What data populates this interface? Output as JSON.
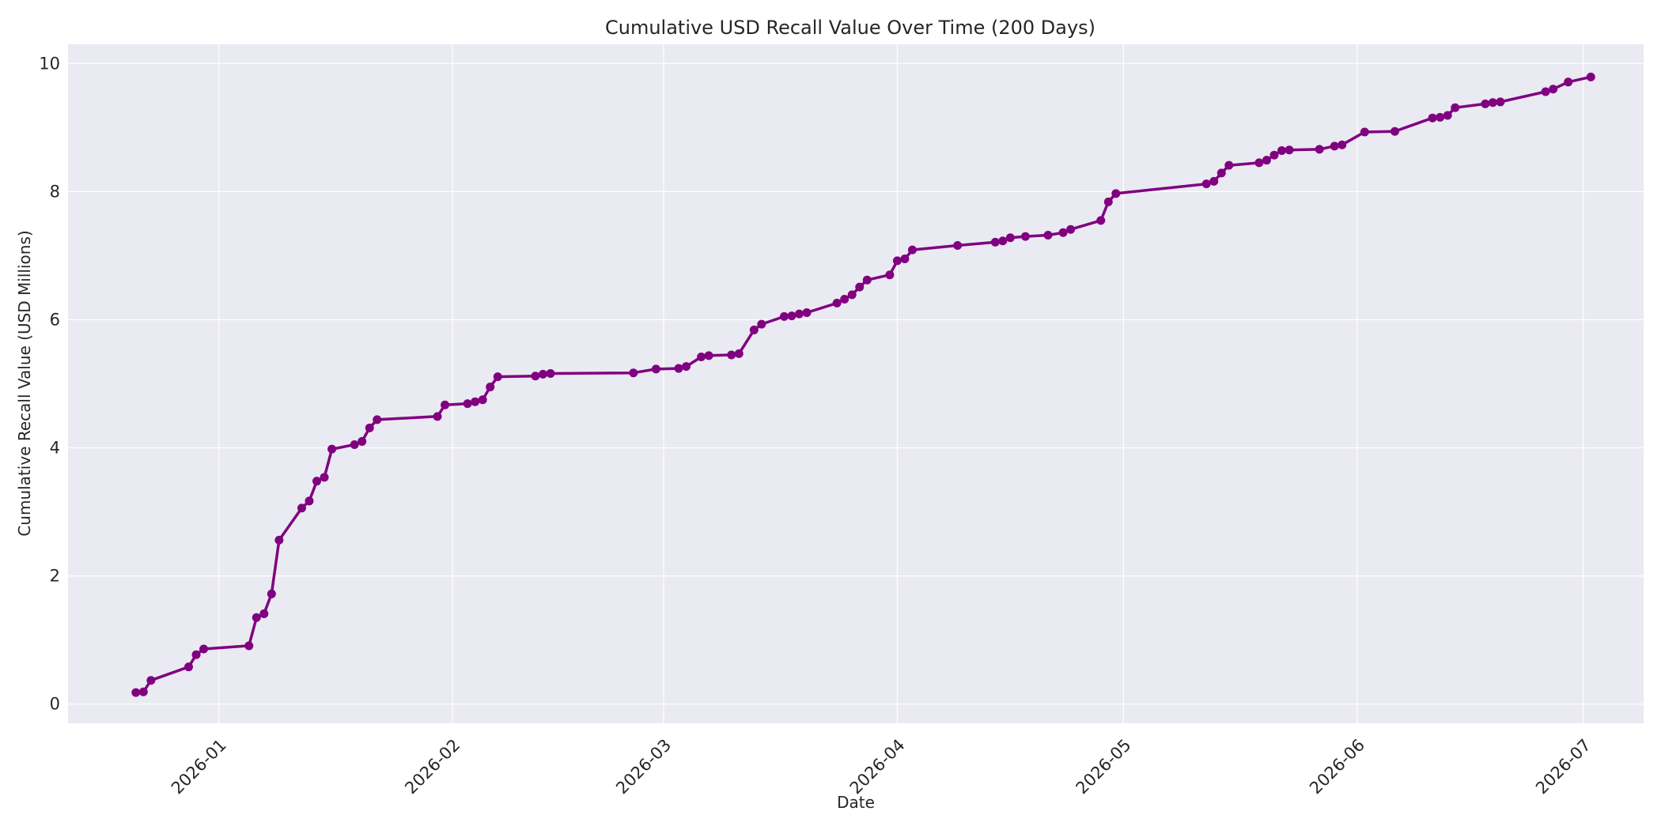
{
  "chart_data": {
    "type": "line",
    "title": "Cumulative USD Recall Value Over Time (200 Days)",
    "xlabel": "Date",
    "ylabel": "Cumulative Recall Value (USD Millions)",
    "x_tick_labels": [
      "2026-01",
      "2026-02",
      "2026-03",
      "2026-04",
      "2026-05",
      "2026-06",
      "2026-07"
    ],
    "x_tick_dates": [
      "2026-01-01",
      "2026-02-01",
      "2026-03-01",
      "2026-04-01",
      "2026-05-01",
      "2026-06-01",
      "2026-07-01"
    ],
    "y_ticks": [
      0,
      2,
      4,
      6,
      8,
      10
    ],
    "xlim": [
      "2025-12-12",
      "2026-07-09"
    ],
    "ylim": [
      -0.3,
      10.3
    ],
    "grid": true,
    "colors": {
      "line": "#800080",
      "plot_background": "#eaeaf2",
      "grid": "#ffffff",
      "page_background": "#ffffff"
    },
    "series": [
      {
        "x": [
          "2025-12-21",
          "2025-12-22",
          "2025-12-23",
          "2025-12-28",
          "2025-12-29",
          "2025-12-30",
          "2026-01-05",
          "2026-01-06",
          "2026-01-07",
          "2026-01-08",
          "2026-01-09",
          "2026-01-12",
          "2026-01-13",
          "2026-01-14",
          "2026-01-15",
          "2026-01-16",
          "2026-01-19",
          "2026-01-20",
          "2026-01-21",
          "2026-01-22",
          "2026-01-30",
          "2026-01-31",
          "2026-02-03",
          "2026-02-04",
          "2026-02-05",
          "2026-02-06",
          "2026-02-07",
          "2026-02-12",
          "2026-02-13",
          "2026-02-14",
          "2026-02-25",
          "2026-02-28",
          "2026-03-03",
          "2026-03-04",
          "2026-03-06",
          "2026-03-07",
          "2026-03-10",
          "2026-03-11",
          "2026-03-13",
          "2026-03-14",
          "2026-03-17",
          "2026-03-18",
          "2026-03-19",
          "2026-03-20",
          "2026-03-24",
          "2026-03-25",
          "2026-03-26",
          "2026-03-27",
          "2026-03-28",
          "2026-03-31",
          "2026-04-01",
          "2026-04-02",
          "2026-04-03",
          "2026-04-09",
          "2026-04-14",
          "2026-04-15",
          "2026-04-16",
          "2026-04-18",
          "2026-04-21",
          "2026-04-23",
          "2026-04-24",
          "2026-04-28",
          "2026-04-29",
          "2026-04-30",
          "2026-05-12",
          "2026-05-13",
          "2026-05-14",
          "2026-05-15",
          "2026-05-19",
          "2026-05-20",
          "2026-05-21",
          "2026-05-22",
          "2026-05-23",
          "2026-05-27",
          "2026-05-29",
          "2026-05-30",
          "2026-06-02",
          "2026-06-06",
          "2026-06-11",
          "2026-06-12",
          "2026-06-13",
          "2026-06-14",
          "2026-06-18",
          "2026-06-19",
          "2026-06-20",
          "2026-06-26",
          "2026-06-27",
          "2026-06-29",
          "2026-07-02"
        ],
        "y": [
          0.18,
          0.19,
          0.37,
          0.58,
          0.77,
          0.86,
          0.91,
          1.35,
          1.41,
          1.72,
          2.56,
          3.06,
          3.17,
          3.48,
          3.54,
          3.98,
          4.05,
          4.1,
          4.31,
          4.44,
          4.49,
          4.67,
          4.69,
          4.72,
          4.75,
          4.95,
          5.11,
          5.12,
          5.15,
          5.16,
          5.17,
          5.23,
          5.24,
          5.27,
          5.42,
          5.44,
          5.45,
          5.47,
          5.84,
          5.93,
          6.05,
          6.06,
          6.09,
          6.11,
          6.26,
          6.32,
          6.39,
          6.51,
          6.62,
          6.7,
          6.92,
          6.95,
          7.09,
          7.16,
          7.21,
          7.23,
          7.28,
          7.3,
          7.32,
          7.36,
          7.41,
          7.55,
          7.84,
          7.97,
          8.12,
          8.16,
          8.29,
          8.41,
          8.45,
          8.49,
          8.57,
          8.64,
          8.65,
          8.66,
          8.71,
          8.73,
          8.93,
          8.94,
          9.15,
          9.16,
          9.19,
          9.31,
          9.37,
          9.39,
          9.4,
          9.56,
          9.6,
          9.71,
          9.79
        ]
      }
    ]
  }
}
